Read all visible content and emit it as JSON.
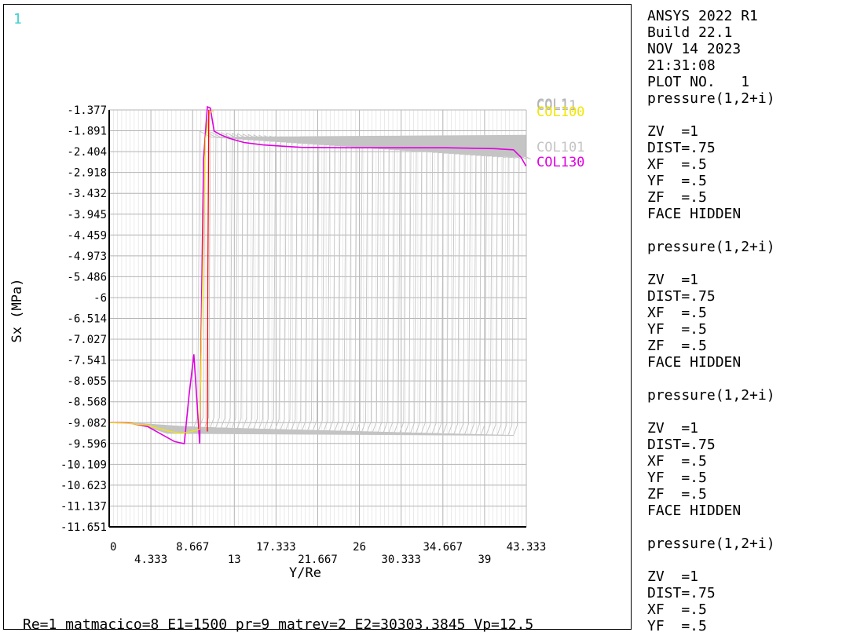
{
  "window_number": "1",
  "footer": "Re=1 matmacico=8 E1=1500 pr=9 matrev=2 E2=30303.3845 Vp=12.5",
  "info_lines": [
    "ANSYS 2022 R1",
    "Build 22.1",
    "NOV 14 2023",
    "21:31:08",
    "PLOT NO.   1",
    "pressure(1,2+i)",
    "",
    "ZV  =1",
    "DIST=.75",
    "XF  =.5",
    "YF  =.5",
    "ZF  =.5",
    "FACE HIDDEN",
    "",
    "pressure(1,2+i)",
    "",
    "ZV  =1",
    "DIST=.75",
    "XF  =.5",
    "YF  =.5",
    "ZF  =.5",
    "FACE HIDDEN",
    "",
    "pressure(1,2+i)",
    "",
    "ZV  =1",
    "DIST=.75",
    "XF  =.5",
    "YF  =.5",
    "ZF  =.5",
    "FACE HIDDEN",
    "",
    "pressure(1,2+i)",
    "",
    "ZV  =1",
    "DIST=.75",
    "XF  =.5",
    "YF  =.5"
  ],
  "colors": {
    "grid": "#b4b4b4",
    "background_curves": "#c4c4c4",
    "yellow": "#f2e600",
    "magenta": "#e000e0",
    "red": "#ff0000",
    "window_number": "#3fd0d0"
  },
  "chart_data": {
    "type": "line",
    "xlabel": "Y/Re",
    "ylabel": "Sx   (MPa)",
    "xlim": [
      0,
      43.333
    ],
    "ylim": [
      -11.651,
      -1.377
    ],
    "x_ticks": [
      "0",
      "4.333",
      "8.667",
      "13",
      "17.333",
      "21.667",
      "26",
      "30.333",
      "34.667",
      "39",
      "43.333"
    ],
    "y_ticks": [
      "-1.377",
      "-1.891",
      "-2.404",
      "-2.918",
      "-3.432",
      "-3.945",
      "-4.459",
      "-4.973",
      "-5.486",
      "-6",
      "-6.514",
      "-7.027",
      "-7.541",
      "-8.055",
      "-8.568",
      "-9.082",
      "-9.596",
      "-10.109",
      "-10.623",
      "-11.137",
      "-11.651"
    ],
    "grid": true,
    "legend_labels": [
      {
        "text": "COL1",
        "color": "#b4b4b4"
      },
      {
        "text": "COL11",
        "color": "#b4b4b4"
      },
      {
        "text": "COL100",
        "color": "#f2e600"
      },
      {
        "text": "COL101",
        "color": "#c4c4c4"
      },
      {
        "text": "COL130",
        "color": "#e000e0"
      }
    ],
    "series": [
      {
        "name": "COL130",
        "color": "#e000e0",
        "x": [
          0,
          2,
          4,
          5.5,
          6.8,
          7.8,
          8.3,
          8.8,
          9.4,
          9.8,
          10.2,
          10.5,
          10.9,
          11.5,
          12.5,
          14,
          16,
          18,
          20,
          25,
          30,
          35,
          40,
          42,
          42.8,
          43.3
        ],
        "y": [
          -9.08,
          -9.09,
          -9.18,
          -9.38,
          -9.55,
          -9.6,
          -8.4,
          -7.4,
          -9.6,
          -2.6,
          -1.3,
          -1.33,
          -1.9,
          -1.98,
          -2.08,
          -2.18,
          -2.24,
          -2.27,
          -2.3,
          -2.31,
          -2.31,
          -2.31,
          -2.33,
          -2.36,
          -2.55,
          -2.76
        ]
      },
      {
        "name": "COL100",
        "color": "#f2e600",
        "x": [
          0,
          2,
          4,
          6,
          7.5,
          8.5,
          9.4,
          10.0,
          10.4,
          10.8
        ],
        "y": [
          -9.08,
          -9.1,
          -9.15,
          -9.28,
          -9.35,
          -9.3,
          -9.25,
          -2.1,
          -1.45,
          -1.4
        ]
      },
      {
        "name": "COL101",
        "color": "#ff0000",
        "x": [
          10.2,
          10.25,
          10.35
        ],
        "y": [
          -9.3,
          -5.5,
          -1.377
        ]
      }
    ]
  }
}
